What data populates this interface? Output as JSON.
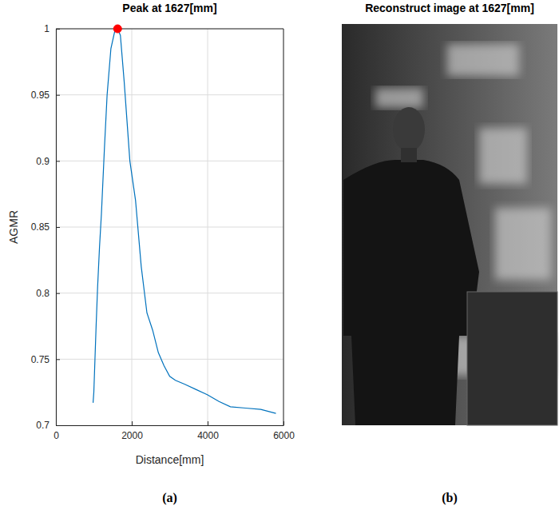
{
  "chart_data": {
    "type": "line",
    "title": "Peak at 1627[mm]",
    "x_label": "Distance[mm]",
    "y_label": "AGMR",
    "xlim": [
      0,
      6000
    ],
    "xticks": [
      0,
      2000,
      4000,
      6000
    ],
    "ylim": [
      0.7,
      1
    ],
    "yticks": [
      0.7,
      0.75,
      0.8,
      0.85,
      0.9,
      0.95,
      1
    ],
    "grid": true,
    "series": [
      {
        "type": "line",
        "color": "#0072bd",
        "line_style": "solid",
        "x": [
          980,
          1000,
          1030,
          1060,
          1100,
          1150,
          1200,
          1280,
          1350,
          1450,
          1550,
          1627,
          1700,
          1800,
          1950,
          2100,
          2250,
          2400,
          2550,
          2700,
          2850,
          3000,
          3150,
          3400,
          3700,
          4000,
          4300,
          4600,
          5000,
          5400,
          5800
        ],
        "values": [
          0.717,
          0.725,
          0.75,
          0.775,
          0.805,
          0.835,
          0.86,
          0.91,
          0.95,
          0.985,
          0.998,
          1,
          0.995,
          0.96,
          0.9,
          0.87,
          0.82,
          0.785,
          0.772,
          0.755,
          0.745,
          0.737,
          0.734,
          0.731,
          0.727,
          0.723,
          0.718,
          0.714,
          0.713,
          0.712,
          0.709
        ]
      },
      {
        "type": "scatter",
        "color": "#ff0000",
        "marker": "circle",
        "x": [
          1627
        ],
        "values": [
          1
        ]
      }
    ]
  },
  "image_panel": {
    "title": "Reconstruct image at 1627[mm]"
  },
  "panel_labels": [
    "(a)",
    "(b)"
  ]
}
